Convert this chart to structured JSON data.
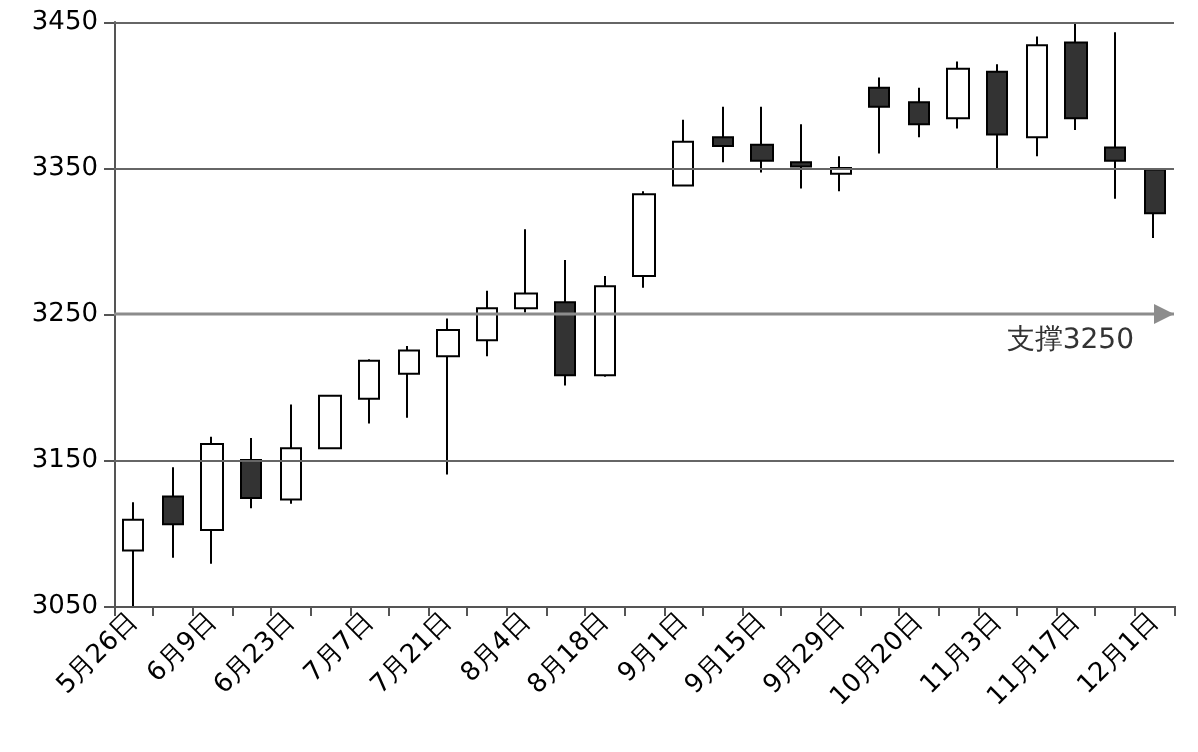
{
  "chart_data": {
    "type": "candlestick",
    "categories": [
      "5月26日",
      null,
      "6月9日",
      null,
      "6月23日",
      null,
      "7月7日",
      null,
      "7月21日",
      null,
      "8月4日",
      null,
      "8月18日",
      null,
      "9月1日",
      null,
      "9月15日",
      null,
      "9月29日",
      null,
      "10月20日",
      null,
      "11月3日",
      null,
      "11月17日",
      null,
      "12月1日"
    ],
    "ohlc": [
      [
        3088,
        3121,
        3050,
        3109
      ],
      [
        3125,
        3145,
        3083,
        3106
      ],
      [
        3102,
        3166,
        3079,
        3161
      ],
      [
        3150,
        3165,
        3117,
        3124
      ],
      [
        3123,
        3188,
        3120,
        3158
      ],
      [
        3158,
        3194,
        3158,
        3194
      ],
      [
        3192,
        3219,
        3175,
        3218
      ],
      [
        3209,
        3228,
        3179,
        3225
      ],
      [
        3221,
        3247,
        3140,
        3239
      ],
      [
        3232,
        3266,
        3221,
        3254
      ],
      [
        3254,
        3308,
        3251,
        3264
      ],
      [
        3258,
        3287,
        3201,
        3208
      ],
      [
        3208,
        3276,
        3207,
        3269
      ],
      [
        3276,
        3334,
        3268,
        3332
      ],
      [
        3338,
        3383,
        3338,
        3368
      ],
      [
        3371,
        3392,
        3354,
        3365
      ],
      [
        3366,
        3392,
        3347,
        3355
      ],
      [
        3354,
        3380,
        3336,
        3351
      ],
      [
        3346,
        3358,
        3334,
        3350
      ],
      [
        3405,
        3412,
        3360,
        3392
      ],
      [
        3395,
        3405,
        3371,
        3380
      ],
      [
        3384,
        3423,
        3377,
        3418
      ],
      [
        3416,
        3421,
        3349,
        3373
      ],
      [
        3371,
        3440,
        3358,
        3434
      ],
      [
        3436,
        3449,
        3376,
        3384
      ],
      [
        3364,
        3443,
        3329,
        3355
      ],
      [
        3349,
        3349,
        3302,
        3319
      ]
    ],
    "colors": [
      "#ffffff",
      "#333333",
      "#ffffff",
      "#333333",
      "#ffffff",
      "#ffffff",
      "#ffffff",
      "#ffffff",
      "#ffffff",
      "#ffffff",
      "#ffffff",
      "#333333",
      "#ffffff",
      "#ffffff",
      "#ffffff",
      "#333333",
      "#333333",
      "#333333",
      "#ffffff",
      "#333333",
      "#333333",
      "#ffffff",
      "#333333",
      "#ffffff",
      "#333333",
      "#333333",
      "#333333"
    ],
    "ylim": [
      3050,
      3450
    ],
    "yticks": [
      3050,
      3150,
      3250,
      3350,
      3450
    ],
    "grid": "y",
    "ref_lines": [
      {
        "axis": "y",
        "value": 3250,
        "label": "支撑3250",
        "color": "#8c8c8c"
      }
    ]
  }
}
